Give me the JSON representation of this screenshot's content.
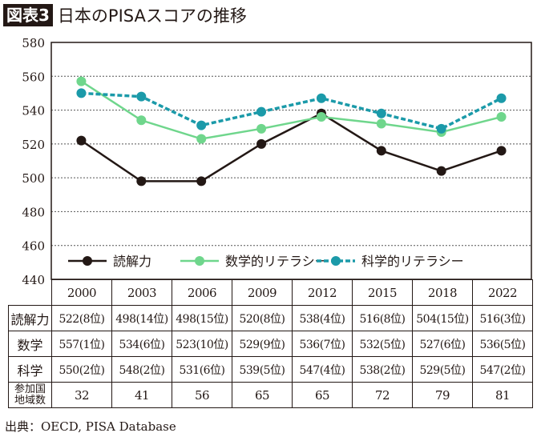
{
  "title": {
    "badge": "図表3",
    "text": "日本のPISAスコアの推移"
  },
  "source": "出典：OECD, PISA Database",
  "colors": {
    "reading": "#231815",
    "math": "#6fd68c",
    "science": "#1b9aa9"
  },
  "chart_data": {
    "type": "line",
    "categories": [
      "2000",
      "2003",
      "2006",
      "2009",
      "2012",
      "2015",
      "2018",
      "2022"
    ],
    "ylim": [
      440,
      580
    ],
    "yticks": [
      440,
      460,
      480,
      500,
      520,
      540,
      560,
      580
    ],
    "grid": "horizontal dotted",
    "legend_placement": "bottom",
    "series": [
      {
        "name": "読解力",
        "values": [
          522,
          498,
          498,
          520,
          538,
          516,
          504,
          516
        ],
        "style": "solid",
        "color": "#231815"
      },
      {
        "name": "数学的リテラシー",
        "values": [
          557,
          534,
          523,
          529,
          536,
          532,
          527,
          536
        ],
        "style": "solid",
        "color": "#6fd68c"
      },
      {
        "name": "科学的リテラシー",
        "values": [
          550,
          548,
          531,
          539,
          547,
          538,
          529,
          547
        ],
        "style": "dashed",
        "color": "#1b9aa9"
      }
    ]
  },
  "table": {
    "rows": [
      {
        "label": "読解力",
        "cells": [
          "522(8位)",
          "498(14位)",
          "498(15位)",
          "520(8位)",
          "538(4位)",
          "516(8位)",
          "504(15位)",
          "516(3位)"
        ]
      },
      {
        "label": "数学",
        "cells": [
          "557(1位)",
          "534(6位)",
          "523(10位)",
          "529(9位)",
          "536(7位)",
          "532(5位)",
          "527(6位)",
          "536(5位)"
        ]
      },
      {
        "label": "科学",
        "cells": [
          "550(2位)",
          "548(2位)",
          "531(6位)",
          "539(5位)",
          "547(4位)",
          "538(2位)",
          "529(5位)",
          "547(2位)"
        ]
      },
      {
        "label": "参加国地域数",
        "label_lines": [
          "参加国",
          "地域数"
        ],
        "cells": [
          "32",
          "41",
          "56",
          "65",
          "65",
          "72",
          "79",
          "81"
        ]
      }
    ]
  }
}
